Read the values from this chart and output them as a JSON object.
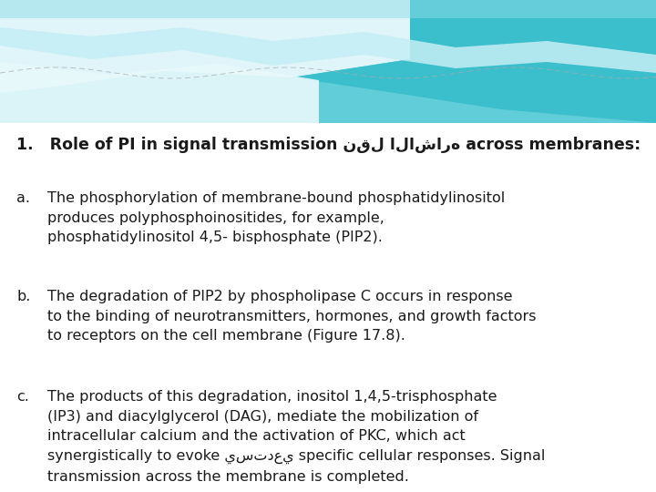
{
  "background_color": "#ffffff",
  "title_text": "1.   Role of PI in signal transmission نقل الاشاره across membranes:",
  "item_a_label": "a.",
  "item_a_text": "The phosphorylation of membrane-bound phosphatidylinositol\nproduces polyphosphoinositides, for example,\nphosphatidylinositol 4,5- bisphosphate (PIP2).",
  "item_b_label": "b.",
  "item_b_text": "The degradation of PIP2 by phospholipase C occurs in response\nto the binding of neurotransmitters, hormones, and growth factors\nto receptors on the cell membrane (Figure 17.8).",
  "item_c_label": "c.",
  "item_c_text": "The products of this degradation, inositol 1,4,5-trisphosphate\n(IP3) and diacylglycerol (DAG), mediate the mobilization of\nintracellular calcium and the activation of PKC, which act\nsynergistically to evoke يستدعي specific cellular responses. Signal\ntransmission across the membrane is completed.",
  "text_color": "#1a1a1a",
  "title_color": "#1a1a1a",
  "font_size_title": 12.5,
  "font_size_body": 11.5,
  "wave_teal_dark": "#3bbfcc",
  "wave_teal_mid": "#60cdd8",
  "wave_teal_light": "#8ddce6",
  "wave_white": "#d8f4f8",
  "wave_very_light": "#eaf8fb"
}
